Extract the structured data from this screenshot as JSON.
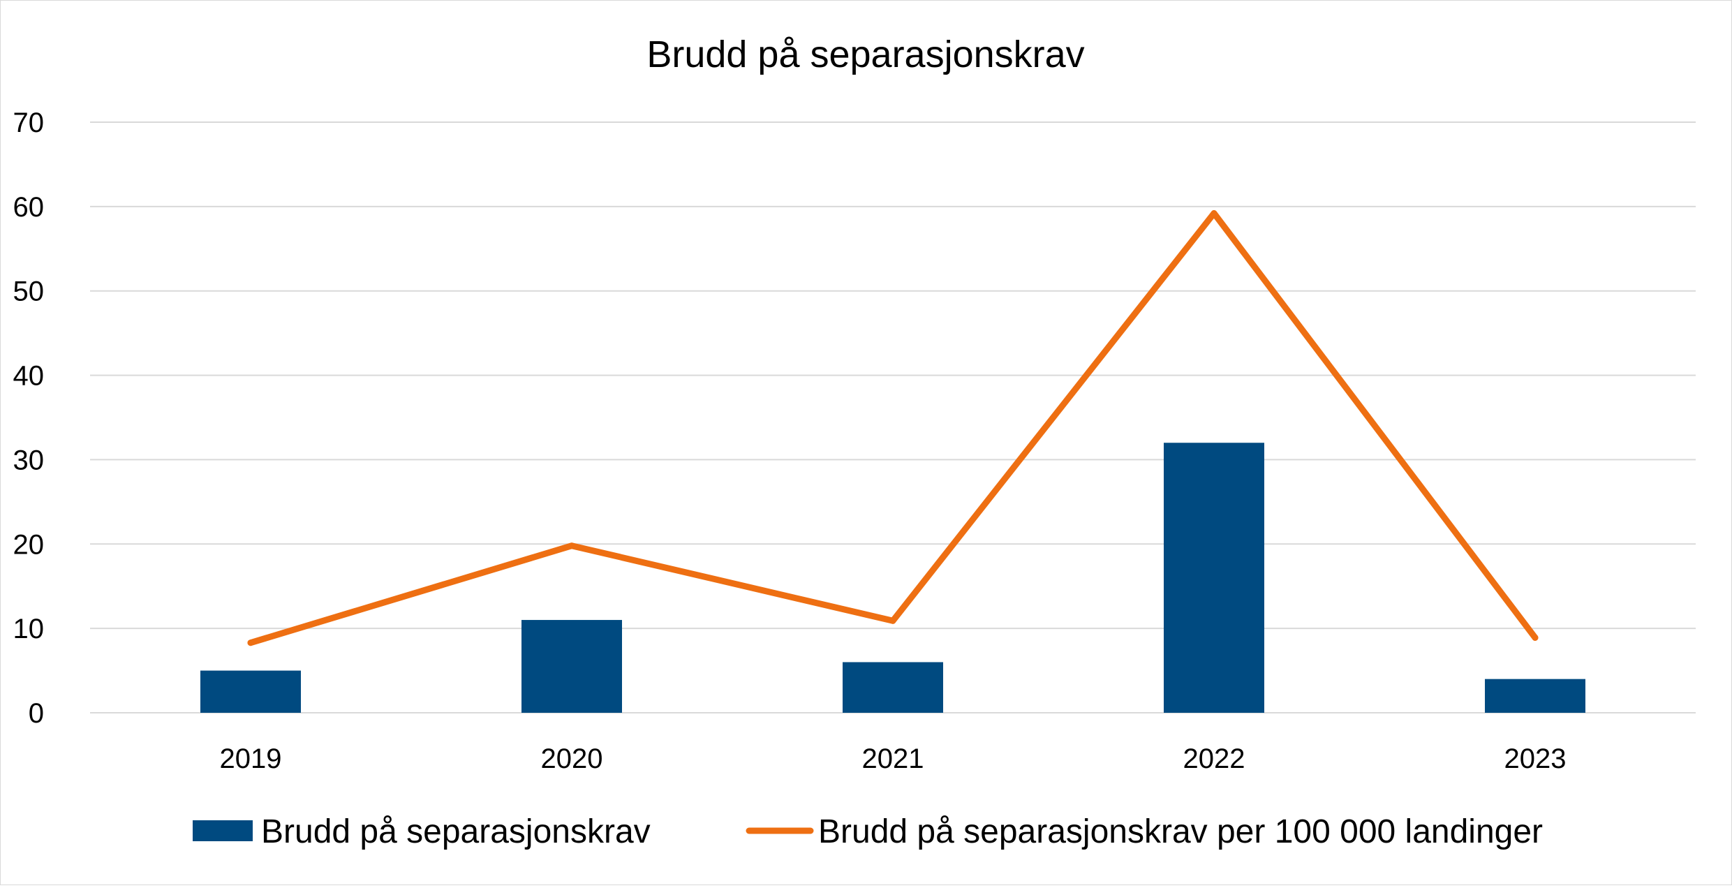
{
  "chart_data": {
    "type": "bar",
    "title": "Brudd på separasjonskrav",
    "xlabel": "",
    "ylabel": "",
    "categories": [
      "2019",
      "2020",
      "2021",
      "2022",
      "2023"
    ],
    "ylim": [
      0,
      70
    ],
    "yticks": [
      "0",
      "10",
      "20",
      "30",
      "40",
      "50",
      "60",
      "70"
    ],
    "grid": true,
    "legend_position": "bottom",
    "series": [
      {
        "name": "Brudd på separasjonskrav",
        "kind": "bar",
        "color": "#004A80",
        "values": [
          5,
          11,
          6,
          32,
          4
        ]
      },
      {
        "name": "Brudd på separasjonskrav per 100 000 landinger",
        "kind": "line",
        "color": "#EE6F12",
        "values": [
          8.3,
          19.8,
          10.9,
          59.2,
          8.9
        ]
      }
    ]
  }
}
